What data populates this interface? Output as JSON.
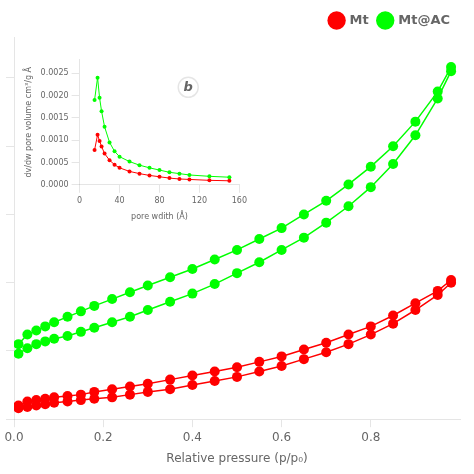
{
  "chart_data": [
    {
      "type": "line",
      "xlabel": "Relative pressure (p/p₀)",
      "xlim": [
        0.0,
        1.0
      ],
      "xticks": [
        {
          "value": 0.0,
          "label": "0.0"
        },
        0.2,
        0.4,
        0.6,
        0.8
      ],
      "ylim": [
        0,
        280
      ],
      "yticks": [
        0,
        50,
        100,
        150,
        200,
        250
      ],
      "tick_labels": "x",
      "grid": false,
      "legend": "upper right",
      "series": [
        {
          "name": "Mt@AC",
          "color": "#00ff00",
          "marker": "circle",
          "line_style": "solid",
          "x": [
            0.01,
            0.03,
            0.05,
            0.07,
            0.09,
            0.12,
            0.15,
            0.18,
            0.22,
            0.26,
            0.3,
            0.35,
            0.4,
            0.45,
            0.5,
            0.55,
            0.6,
            0.65,
            0.7,
            0.75,
            0.8,
            0.85,
            0.9,
            0.95,
            0.98
          ],
          "values": [
            48,
            52,
            55,
            57,
            59,
            61,
            64,
            67,
            71,
            75,
            80,
            86,
            92,
            99,
            107,
            115,
            124,
            133,
            144,
            156,
            170,
            187,
            208,
            235,
            255
          ]
        },
        {
          "name": "Mt@AC",
          "color": "#00ff00",
          "marker": "circle",
          "line_style": "solid",
          "x": [
            0.98,
            0.95,
            0.9,
            0.85,
            0.8,
            0.75,
            0.7,
            0.65,
            0.6,
            0.55,
            0.5,
            0.45,
            0.4,
            0.35,
            0.3,
            0.26,
            0.22,
            0.18,
            0.15,
            0.12,
            0.09,
            0.07,
            0.05,
            0.03,
            0.01
          ],
          "values": [
            258,
            240,
            218,
            200,
            185,
            172,
            160,
            150,
            140,
            132,
            124,
            117,
            110,
            104,
            98,
            93,
            88,
            83,
            79,
            75,
            71,
            68,
            65,
            62,
            55
          ]
        },
        {
          "name": "Mt",
          "color": "#ff0000",
          "marker": "circle",
          "line_style": "solid",
          "x": [
            0.01,
            0.03,
            0.05,
            0.07,
            0.09,
            0.12,
            0.15,
            0.18,
            0.22,
            0.26,
            0.3,
            0.35,
            0.4,
            0.45,
            0.5,
            0.55,
            0.6,
            0.65,
            0.7,
            0.75,
            0.8,
            0.85,
            0.9,
            0.95,
            0.98
          ],
          "values": [
            8,
            9,
            10,
            11,
            12,
            13,
            14,
            15,
            16,
            18,
            20,
            22,
            25,
            28,
            31,
            35,
            39,
            44,
            49,
            55,
            62,
            70,
            80,
            91,
            100
          ]
        },
        {
          "name": "Mt",
          "color": "#ff0000",
          "marker": "circle",
          "line_style": "solid",
          "x": [
            0.98,
            0.95,
            0.9,
            0.85,
            0.8,
            0.75,
            0.7,
            0.65,
            0.6,
            0.55,
            0.5,
            0.45,
            0.4,
            0.35,
            0.3,
            0.26,
            0.22,
            0.18,
            0.15,
            0.12,
            0.09,
            0.07,
            0.05,
            0.03,
            0.01
          ],
          "values": [
            102,
            94,
            85,
            76,
            68,
            62,
            56,
            51,
            46,
            42,
            38,
            35,
            32,
            29,
            26,
            24,
            22,
            20,
            18,
            17,
            16,
            15,
            14,
            13,
            10
          ]
        }
      ]
    },
    {
      "type": "line",
      "xlabel": "pore wdith (Å)",
      "ylabel": "dv/dw pore volume cm³/g Å",
      "xlim": [
        0,
        160
      ],
      "xticks": [
        0,
        40,
        80,
        120,
        160
      ],
      "ylim": [
        0.0,
        0.0028
      ],
      "yticks": [
        {
          "value": 0.0,
          "label": "0.0000"
        },
        {
          "value": 0.0005,
          "label": "0.0005"
        },
        {
          "value": 0.001,
          "label": "0.0010"
        },
        {
          "value": 0.0015,
          "label": "0.0015"
        },
        {
          "value": 0.002,
          "label": "0.0020"
        },
        {
          "value": 0.0025,
          "label": "0.0025"
        }
      ],
      "grid": false,
      "annotations": [
        "b"
      ],
      "series": [
        {
          "name": "Mt@AC",
          "color": "#00ff00",
          "marker": "circle",
          "line_style": "solid",
          "x": [
            15,
            18,
            20,
            22,
            25,
            30,
            35,
            40,
            50,
            60,
            70,
            80,
            90,
            100,
            110,
            130,
            150
          ],
          "values": [
            0.0019,
            0.0024,
            0.00195,
            0.00165,
            0.0013,
            0.00095,
            0.00075,
            0.00063,
            0.00052,
            0.00044,
            0.00038,
            0.00033,
            0.00028,
            0.00025,
            0.00022,
            0.00019,
            0.00017
          ]
        },
        {
          "name": "Mt",
          "color": "#ff0000",
          "marker": "circle",
          "line_style": "solid",
          "x": [
            15,
            18,
            20,
            22,
            25,
            30,
            35,
            40,
            50,
            60,
            70,
            80,
            90,
            100,
            110,
            130,
            150
          ],
          "values": [
            0.00078,
            0.00112,
            0.00098,
            0.00086,
            0.0007,
            0.00055,
            0.00045,
            0.00038,
            0.0003,
            0.00025,
            0.00021,
            0.00018,
            0.00015,
            0.00013,
            0.00012,
            0.0001,
            9e-05
          ]
        }
      ]
    }
  ]
}
